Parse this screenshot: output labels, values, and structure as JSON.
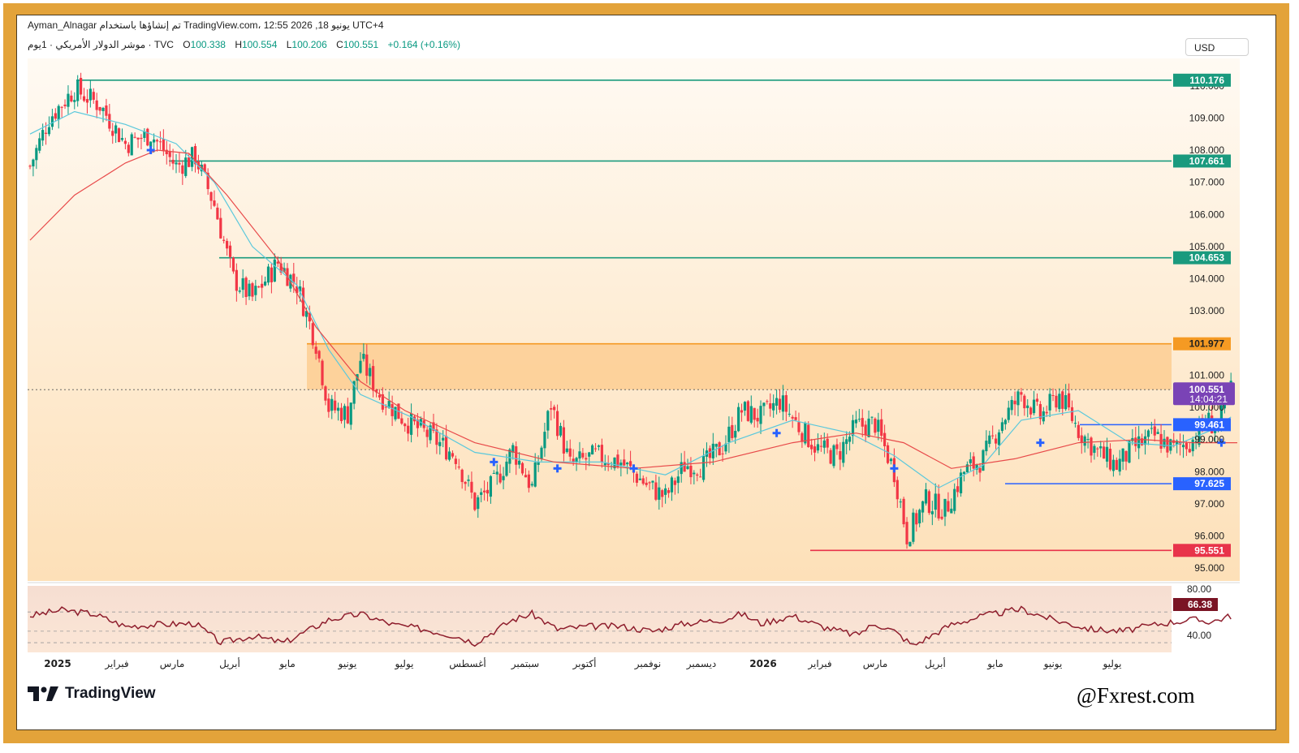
{
  "header": {
    "line1": "Ayman_Alnagar تم إنشاؤها باستخدام TradingView.com، 12:55 2026 ,18 يونيو UTC+4",
    "symbol": "موشر الدولار الأمريكي · 1يوم · TVC",
    "open_label": "O",
    "open": "100.338",
    "high_label": "H",
    "high": "100.554",
    "low_label": "L",
    "low": "100.206",
    "close_label": "C",
    "close": "100.551",
    "change": "+0.164 (+0.16%)"
  },
  "currency": "USD",
  "footer": {
    "brand": "TradingView",
    "watermark": "@Fxrest.com"
  },
  "colors": {
    "frame": "#e3a33a",
    "up": "#089981",
    "down": "#f23645",
    "ema_fast": "#5ac8dc",
    "ema_slow": "#e84a4a",
    "level_green": "#1a9a7e",
    "level_orange": "#f59a23",
    "level_blue": "#2962ff",
    "level_red": "#e8334a",
    "current_price": "#7a43b6",
    "rsi": "#8e1d2c"
  },
  "chart_data": {
    "type": "candlestick",
    "ylim": [
      94.6,
      110.6
    ],
    "y_ticks": [
      "110.000",
      "109.000",
      "108.000",
      "107.000",
      "106.000",
      "105.000",
      "104.000",
      "103.000",
      "102.000",
      "101.000",
      "100.000",
      "99.000",
      "98.000",
      "97.000",
      "96.000",
      "95.000"
    ],
    "x_labels": [
      "2025",
      "فبراير",
      "مارس",
      "أبريل",
      "مايو",
      "يونيو",
      "يوليو",
      "أغسطس",
      "سبتمبر",
      "أكتوبر",
      "نوفمبر",
      "ديسمبر",
      "2026",
      "فبراير",
      "مارس",
      "أبريل",
      "مايو",
      "يونيو",
      "يوليو"
    ],
    "levels": [
      {
        "label": "110.176",
        "value": 110.176,
        "color": "green"
      },
      {
        "label": "107.661",
        "value": 107.661,
        "color": "green"
      },
      {
        "label": "104.653",
        "value": 104.653,
        "color": "green"
      },
      {
        "label": "101.977",
        "value": 101.977,
        "color": "orange"
      },
      {
        "label": "99.461",
        "value": 99.461,
        "color": "blue"
      },
      {
        "label": "97.625",
        "value": 97.625,
        "color": "blue"
      },
      {
        "label": "95.551",
        "value": 95.551,
        "color": "red"
      }
    ],
    "zone": {
      "top": 101.977,
      "bottom": 100.551
    },
    "current_price": {
      "label": "100.551",
      "countdown": "14:04:21",
      "value": 100.551
    },
    "close_path": [
      [
        0,
        107.5
      ],
      [
        6,
        109.0
      ],
      [
        14,
        109.9
      ],
      [
        22,
        109.4
      ],
      [
        30,
        108.2
      ],
      [
        38,
        108.5
      ],
      [
        46,
        107.5
      ],
      [
        52,
        107.8
      ],
      [
        58,
        106.3
      ],
      [
        64,
        104.0
      ],
      [
        70,
        103.4
      ],
      [
        78,
        104.5
      ],
      [
        84,
        103.8
      ],
      [
        90,
        102.0
      ],
      [
        94,
        100.0
      ],
      [
        100,
        99.8
      ],
      [
        104,
        101.5
      ],
      [
        110,
        100.4
      ],
      [
        118,
        99.6
      ],
      [
        126,
        99.1
      ],
      [
        134,
        98.5
      ],
      [
        140,
        97.0
      ],
      [
        146,
        97.6
      ],
      [
        152,
        98.7
      ],
      [
        158,
        97.5
      ],
      [
        164,
        100.1
      ],
      [
        170,
        98.2
      ],
      [
        178,
        98.5
      ],
      [
        186,
        98.3
      ],
      [
        194,
        97.6
      ],
      [
        200,
        97.2
      ],
      [
        206,
        98.2
      ],
      [
        212,
        98.2
      ],
      [
        218,
        98.8
      ],
      [
        224,
        99.9
      ],
      [
        230,
        99.7
      ],
      [
        236,
        100.2
      ],
      [
        242,
        99.4
      ],
      [
        248,
        98.7
      ],
      [
        254,
        98.5
      ],
      [
        260,
        99.4
      ],
      [
        266,
        99.5
      ],
      [
        272,
        98.0
      ],
      [
        276,
        96.0
      ],
      [
        282,
        97.1
      ],
      [
        288,
        96.8
      ],
      [
        294,
        98.0
      ],
      [
        300,
        98.4
      ],
      [
        306,
        99.6
      ],
      [
        312,
        100.4
      ],
      [
        318,
        99.7
      ],
      [
        324,
        100.4
      ],
      [
        330,
        99.3
      ],
      [
        336,
        98.6
      ],
      [
        342,
        98.2
      ],
      [
        348,
        98.8
      ],
      [
        354,
        99.1
      ],
      [
        360,
        98.7
      ],
      [
        366,
        99.0
      ],
      [
        370,
        99.6
      ],
      [
        374,
        99.4
      ],
      [
        378,
        100.55
      ]
    ],
    "ema_fast": [
      [
        0,
        108.5
      ],
      [
        14,
        109.2
      ],
      [
        30,
        108.8
      ],
      [
        46,
        108.2
      ],
      [
        58,
        107.0
      ],
      [
        70,
        105.0
      ],
      [
        84,
        103.8
      ],
      [
        94,
        101.8
      ],
      [
        104,
        100.4
      ],
      [
        120,
        99.7
      ],
      [
        140,
        98.6
      ],
      [
        160,
        98.3
      ],
      [
        180,
        98.3
      ],
      [
        200,
        97.9
      ],
      [
        220,
        98.9
      ],
      [
        240,
        99.6
      ],
      [
        258,
        99.2
      ],
      [
        272,
        98.5
      ],
      [
        286,
        97.5
      ],
      [
        300,
        98.2
      ],
      [
        312,
        99.6
      ],
      [
        330,
        99.9
      ],
      [
        346,
        98.9
      ],
      [
        360,
        98.8
      ],
      [
        372,
        99.3
      ],
      [
        378,
        99.7
      ]
    ],
    "ema_slow": [
      [
        0,
        105.2
      ],
      [
        14,
        106.6
      ],
      [
        30,
        107.6
      ],
      [
        40,
        108.0
      ],
      [
        50,
        107.9
      ],
      [
        62,
        106.6
      ],
      [
        78,
        104.6
      ],
      [
        90,
        102.5
      ],
      [
        104,
        100.8
      ],
      [
        118,
        99.9
      ],
      [
        140,
        98.9
      ],
      [
        165,
        98.3
      ],
      [
        190,
        98.1
      ],
      [
        215,
        98.3
      ],
      [
        240,
        98.9
      ],
      [
        260,
        99.2
      ],
      [
        275,
        98.9
      ],
      [
        290,
        98.1
      ],
      [
        310,
        98.4
      ],
      [
        330,
        98.9
      ],
      [
        350,
        99.0
      ],
      [
        366,
        98.9
      ],
      [
        380,
        98.9
      ]
    ],
    "markers": [
      [
        38,
        108.0
      ],
      [
        146,
        98.3
      ],
      [
        166,
        98.1
      ],
      [
        190,
        98.1
      ],
      [
        235,
        99.2
      ],
      [
        272,
        98.1
      ],
      [
        318,
        98.9
      ],
      [
        375,
        98.9
      ]
    ],
    "rsi": {
      "ylim": [
        33,
        82
      ],
      "ticks": [
        "80.00",
        "40.00"
      ],
      "value_label": "66.38",
      "path": [
        [
          0,
          66
        ],
        [
          10,
          72
        ],
        [
          20,
          68
        ],
        [
          30,
          55
        ],
        [
          40,
          57
        ],
        [
          52,
          58
        ],
        [
          60,
          38
        ],
        [
          70,
          45
        ],
        [
          80,
          38
        ],
        [
          90,
          55
        ],
        [
          94,
          62
        ],
        [
          104,
          68
        ],
        [
          114,
          57
        ],
        [
          124,
          52
        ],
        [
          134,
          45
        ],
        [
          140,
          38
        ],
        [
          152,
          62
        ],
        [
          158,
          68
        ],
        [
          166,
          52
        ],
        [
          176,
          55
        ],
        [
          186,
          55
        ],
        [
          196,
          50
        ],
        [
          206,
          58
        ],
        [
          218,
          62
        ],
        [
          224,
          68
        ],
        [
          230,
          58
        ],
        [
          240,
          66
        ],
        [
          250,
          54
        ],
        [
          260,
          46
        ],
        [
          266,
          58
        ],
        [
          272,
          50
        ],
        [
          278,
          35
        ],
        [
          290,
          57
        ],
        [
          300,
          66
        ],
        [
          312,
          73
        ],
        [
          322,
          62
        ],
        [
          334,
          52
        ],
        [
          344,
          50
        ],
        [
          356,
          58
        ],
        [
          366,
          62
        ],
        [
          372,
          60
        ],
        [
          378,
          66
        ]
      ]
    }
  }
}
